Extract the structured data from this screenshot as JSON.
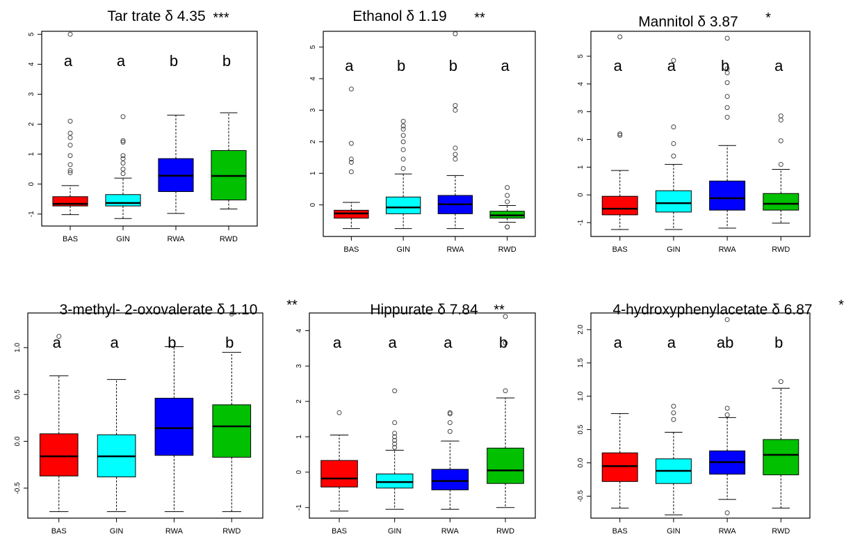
{
  "chart_data": [
    {
      "type": "boxplot",
      "title": "Tar trate δ 4.35",
      "significance": "***",
      "categories": [
        "BAS",
        "GIN",
        "RWA",
        "RWD"
      ],
      "colors": [
        "#ff0000",
        "#00ffff",
        "#0000ff",
        "#00c000"
      ],
      "ylim": [
        -1.4,
        5.1
      ],
      "yticks": [
        -1,
        0,
        1,
        2,
        3,
        4,
        5
      ],
      "group_letters": [
        "a",
        "a",
        "b",
        "b"
      ],
      "boxes": [
        {
          "whisker_low": -1.02,
          "q1": -0.73,
          "median": -0.66,
          "q3": -0.42,
          "whisker_high": -0.05,
          "outliers": [
            0.38,
            0.45,
            0.65,
            0.95,
            1.3,
            1.55,
            1.7,
            2.1,
            5.0
          ]
        },
        {
          "whisker_low": -1.15,
          "q1": -0.73,
          "median": -0.63,
          "q3": -0.35,
          "whisker_high": 0.2,
          "outliers": [
            0.35,
            0.5,
            0.7,
            0.85,
            0.95,
            1.4,
            1.45,
            2.25
          ]
        },
        {
          "whisker_low": -0.98,
          "q1": -0.25,
          "median": 0.28,
          "q3": 0.85,
          "whisker_high": 2.3,
          "outliers": []
        },
        {
          "whisker_low": -0.83,
          "q1": -0.53,
          "median": 0.27,
          "q3": 1.12,
          "whisker_high": 2.38,
          "outliers": []
        }
      ]
    },
    {
      "type": "boxplot",
      "title": "Ethanol δ 1.19",
      "significance": "**",
      "categories": [
        "BAS",
        "GIN",
        "RWA",
        "RWD"
      ],
      "colors": [
        "#ff0000",
        "#00ffff",
        "#0000ff",
        "#00c000"
      ],
      "ylim": [
        -1.0,
        5.5
      ],
      "yticks": [
        0,
        1,
        2,
        3,
        4,
        5
      ],
      "group_letters": [
        "a",
        "b",
        "b",
        "a"
      ],
      "boxes": [
        {
          "whisker_low": -0.75,
          "q1": -0.42,
          "median": -0.27,
          "q3": -0.17,
          "whisker_high": 0.08,
          "outliers": [
            1.05,
            1.35,
            1.45,
            1.95,
            3.67
          ]
        },
        {
          "whisker_low": -0.75,
          "q1": -0.28,
          "median": -0.08,
          "q3": 0.25,
          "whisker_high": 0.98,
          "outliers": [
            1.15,
            1.45,
            1.75,
            2.0,
            2.2,
            2.4,
            2.5,
            2.65
          ]
        },
        {
          "whisker_low": -0.75,
          "q1": -0.28,
          "median": 0.02,
          "q3": 0.3,
          "whisker_high": 0.93,
          "outliers": [
            1.45,
            1.6,
            1.8,
            3.0,
            3.15,
            5.42
          ]
        },
        {
          "whisker_low": -0.55,
          "q1": -0.42,
          "median": -0.33,
          "q3": -0.2,
          "whisker_high": -0.02,
          "outliers": [
            0.1,
            0.3,
            0.55,
            -0.7,
            -0.7
          ]
        }
      ]
    },
    {
      "type": "boxplot",
      "title": "Mannitol δ 3.87",
      "significance": "*",
      "categories": [
        "BAS",
        "GIN",
        "RWA",
        "RWD"
      ],
      "colors": [
        "#ff0000",
        "#00ffff",
        "#0000ff",
        "#00c000"
      ],
      "ylim": [
        -1.5,
        5.9
      ],
      "yticks": [
        -1,
        0,
        1,
        2,
        3,
        4,
        5
      ],
      "group_letters": [
        "a",
        "a",
        "b",
        "a"
      ],
      "boxes": [
        {
          "whisker_low": -1.25,
          "q1": -0.72,
          "median": -0.5,
          "q3": -0.05,
          "whisker_high": 0.88,
          "outliers": [
            2.15,
            2.2,
            5.7
          ]
        },
        {
          "whisker_low": -1.25,
          "q1": -0.62,
          "median": -0.3,
          "q3": 0.15,
          "whisker_high": 1.1,
          "outliers": [
            1.4,
            1.85,
            2.45,
            4.85
          ]
        },
        {
          "whisker_low": -1.2,
          "q1": -0.55,
          "median": -0.12,
          "q3": 0.5,
          "whisker_high": 1.78,
          "outliers": [
            2.8,
            3.15,
            3.55,
            4.05,
            4.4,
            4.55,
            5.65
          ]
        },
        {
          "whisker_low": -1.02,
          "q1": -0.55,
          "median": -0.32,
          "q3": 0.05,
          "whisker_high": 0.92,
          "outliers": [
            1.1,
            1.95,
            2.7,
            2.85
          ]
        }
      ]
    },
    {
      "type": "boxplot",
      "title": "3-methyl- 2-oxovalerate δ 1.10",
      "significance": "**",
      "categories": [
        "BAS",
        "GIN",
        "RWA",
        "RWD"
      ],
      "colors": [
        "#ff0000",
        "#00ffff",
        "#0000ff",
        "#00c000"
      ],
      "ylim": [
        -0.82,
        1.37
      ],
      "yticks": [
        -0.5,
        0.0,
        0.5,
        1.0
      ],
      "group_letters": [
        "a",
        "a",
        "b",
        "b"
      ],
      "boxes": [
        {
          "whisker_low": -0.75,
          "q1": -0.37,
          "median": -0.16,
          "q3": 0.08,
          "whisker_high": 0.7,
          "outliers": [
            1.12
          ]
        },
        {
          "whisker_low": -0.75,
          "q1": -0.38,
          "median": -0.16,
          "q3": 0.07,
          "whisker_high": 0.66,
          "outliers": []
        },
        {
          "whisker_low": -0.75,
          "q1": -0.15,
          "median": 0.14,
          "q3": 0.46,
          "whisker_high": 1.01,
          "outliers": []
        },
        {
          "whisker_low": -0.75,
          "q1": -0.17,
          "median": 0.16,
          "q3": 0.39,
          "whisker_high": 0.95,
          "outliers": [
            1.36
          ]
        }
      ]
    },
    {
      "type": "boxplot",
      "title": "Hippurate δ 7.84",
      "significance": "**",
      "categories": [
        "BAS",
        "GIN",
        "RWA",
        "RWD"
      ],
      "colors": [
        "#ff0000",
        "#00ffff",
        "#0000ff",
        "#00c000"
      ],
      "ylim": [
        -1.3,
        4.5
      ],
      "yticks": [
        -1,
        0,
        1,
        2,
        3,
        4
      ],
      "group_letters": [
        "a",
        "a",
        "a",
        "b"
      ],
      "boxes": [
        {
          "whisker_low": -1.1,
          "q1": -0.42,
          "median": -0.18,
          "q3": 0.33,
          "whisker_high": 1.05,
          "outliers": [
            1.68
          ]
        },
        {
          "whisker_low": -1.05,
          "q1": -0.45,
          "median": -0.28,
          "q3": -0.05,
          "whisker_high": 0.62,
          "outliers": [
            0.7,
            0.8,
            0.9,
            1.0,
            1.1,
            1.4,
            2.3
          ]
        },
        {
          "whisker_low": -1.05,
          "q1": -0.5,
          "median": -0.25,
          "q3": 0.08,
          "whisker_high": 0.88,
          "outliers": [
            1.15,
            1.4,
            1.65,
            1.68
          ]
        },
        {
          "whisker_low": -1.0,
          "q1": -0.32,
          "median": 0.05,
          "q3": 0.68,
          "whisker_high": 2.1,
          "outliers": [
            2.3,
            3.65,
            4.4
          ]
        }
      ]
    },
    {
      "type": "boxplot",
      "title": "4-hydroxyphenylacetate δ 6.87",
      "significance": "*",
      "categories": [
        "BAS",
        "GIN",
        "RWA",
        "RWD"
      ],
      "colors": [
        "#ff0000",
        "#00ffff",
        "#0000ff",
        "#00c000"
      ],
      "ylim": [
        -0.83,
        2.25
      ],
      "yticks": [
        -0.5,
        0.0,
        0.5,
        1.0,
        1.5,
        2.0
      ],
      "group_letters": [
        "a",
        "a",
        "ab",
        "b"
      ],
      "boxes": [
        {
          "whisker_low": -0.68,
          "q1": -0.28,
          "median": -0.05,
          "q3": 0.15,
          "whisker_high": 0.74,
          "outliers": []
        },
        {
          "whisker_low": -0.78,
          "q1": -0.31,
          "median": -0.12,
          "q3": 0.06,
          "whisker_high": 0.46,
          "outliers": [
            0.65,
            0.75,
            0.85
          ]
        },
        {
          "whisker_low": -0.55,
          "q1": -0.17,
          "median": 0.01,
          "q3": 0.18,
          "whisker_high": 0.68,
          "outliers": [
            0.72,
            0.82,
            -0.75,
            2.15
          ]
        },
        {
          "whisker_low": -0.68,
          "q1": -0.18,
          "median": 0.12,
          "q3": 0.35,
          "whisker_high": 1.12,
          "outliers": [
            1.22
          ]
        }
      ]
    }
  ]
}
